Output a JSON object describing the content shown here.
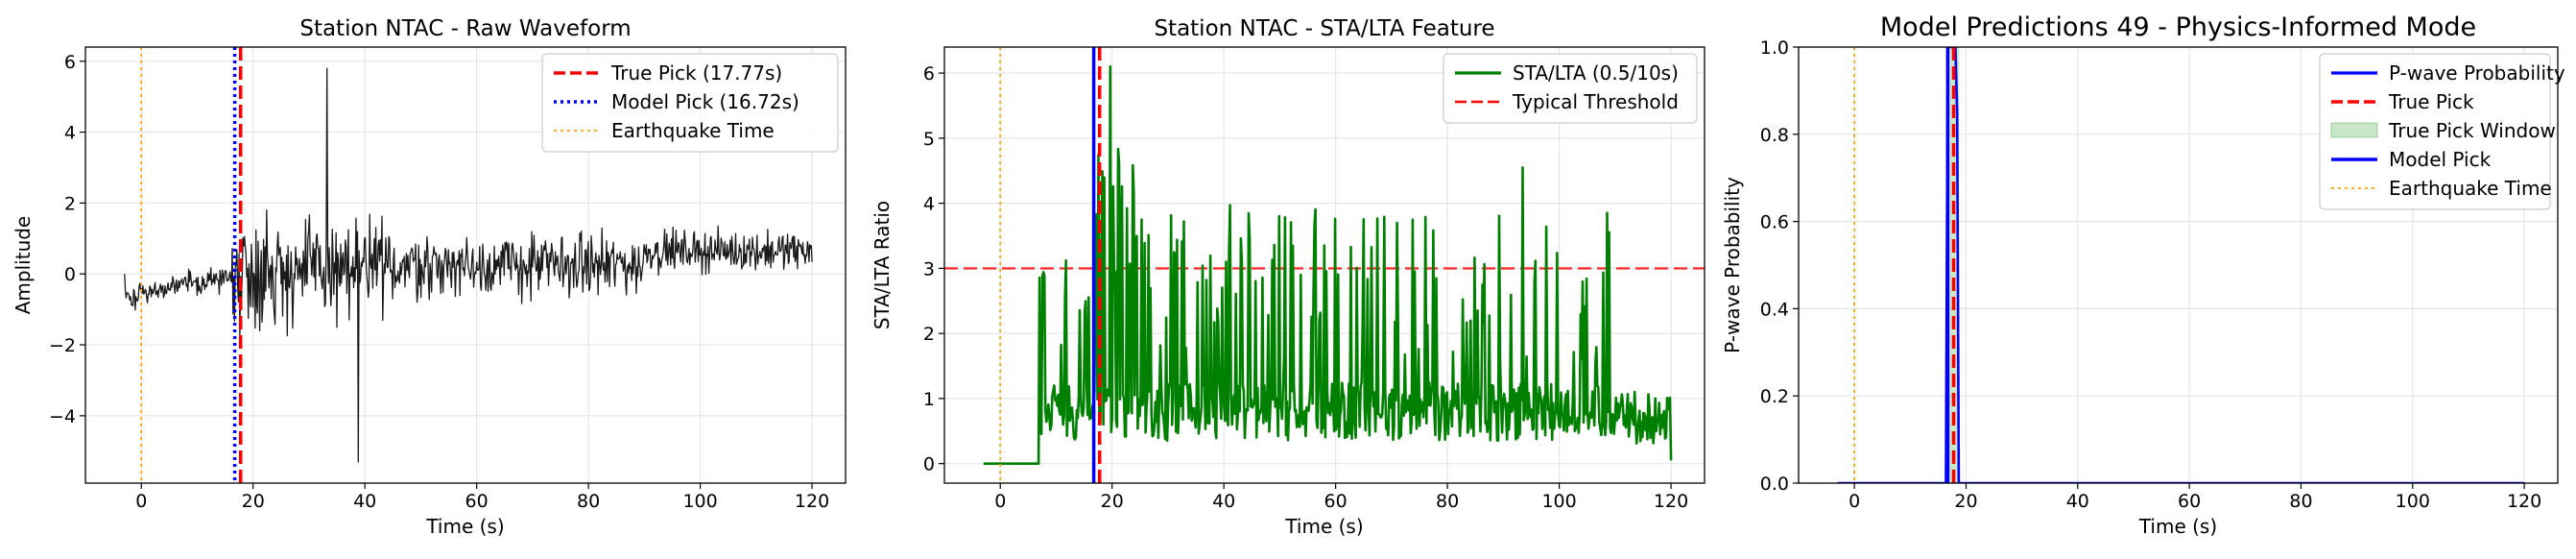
{
  "chart_data": [
    {
      "type": "line",
      "title": "Station NTAC - Raw Waveform",
      "xlabel": "Time (s)",
      "ylabel": "Amplitude",
      "xlim": [
        -10,
        126
      ],
      "ylim": [
        -5.9,
        6.4
      ],
      "xticks": [
        0,
        20,
        40,
        60,
        80,
        100,
        120
      ],
      "yticks": [
        -4,
        -2,
        0,
        2,
        4,
        6
      ],
      "grid": true,
      "legend_position": "top-right",
      "series": [
        {
          "name": "Waveform",
          "color": "#1a1a1a",
          "x_start": -3,
          "x_end": 120,
          "signal": "waveform"
        }
      ],
      "vlines": [
        {
          "name": "True Pick (17.77s)",
          "x": 17.77,
          "color": "#ff0000",
          "style": "dashed"
        },
        {
          "name": "Model Pick (16.72s)",
          "x": 16.72,
          "color": "#0000ff",
          "style": "dotted"
        },
        {
          "name": "Earthquake Time",
          "x": 0,
          "color": "#ffa500",
          "style": "dotted"
        }
      ],
      "legend": [
        "True Pick (17.77s)",
        "Model Pick (16.72s)",
        "Earthquake Time"
      ]
    },
    {
      "type": "line",
      "title": "Station NTAC - STA/LTA Feature",
      "xlabel": "Time (s)",
      "ylabel": "STA/LTA Ratio",
      "xlim": [
        -10,
        126
      ],
      "ylim": [
        -0.3,
        6.4
      ],
      "xticks": [
        0,
        20,
        40,
        60,
        80,
        100,
        120
      ],
      "yticks": [
        0,
        1,
        2,
        3,
        4,
        5,
        6
      ],
      "grid": true,
      "legend_position": "top-right",
      "series": [
        {
          "name": "STA/LTA (0.5/10s)",
          "color": "#008000",
          "x_start": -3,
          "x_end": 120,
          "signal": "stalta"
        }
      ],
      "hlines": [
        {
          "name": "Typical Threshold",
          "y": 3,
          "color": "#ff0000",
          "style": "dashed"
        }
      ],
      "vlines": [
        {
          "x": 17.77,
          "color": "#ff0000",
          "style": "dashed"
        },
        {
          "x": 16.72,
          "color": "#0000ff",
          "style": "solid"
        },
        {
          "x": 0,
          "color": "#ffa500",
          "style": "dotted"
        }
      ],
      "legend": [
        "STA/LTA (0.5/10s)",
        "Typical Threshold"
      ]
    },
    {
      "type": "line",
      "title": "Model Predictions 49 - Physics-Informed Mode",
      "xlabel": "Time (s)",
      "ylabel": "P-wave Probability",
      "xlim": [
        -10,
        126
      ],
      "ylim": [
        0,
        1
      ],
      "xticks": [
        0,
        20,
        40,
        60,
        80,
        100,
        120
      ],
      "yticks": [
        0,
        0.2,
        0.4,
        0.6,
        0.8,
        1.0
      ],
      "ytick_labels": [
        "0.0",
        "0.2",
        "0.4",
        "0.6",
        "0.8",
        "1.0"
      ],
      "grid": true,
      "legend_position": "top-right",
      "series": [
        {
          "name": "P-wave Probability",
          "color": "#0000ff",
          "x": [
            -3,
            16.4,
            16.72,
            17.0,
            17.4,
            17.77,
            18.1,
            18.4,
            18.7,
            120
          ],
          "y": [
            0,
            0,
            1,
            1,
            1,
            1,
            1,
            0.85,
            0,
            0
          ]
        }
      ],
      "true_pick_window": [
        16.77,
        18.77
      ],
      "vlines": [
        {
          "name": "True Pick",
          "x": 17.77,
          "color": "#ff0000",
          "style": "dashed"
        },
        {
          "name": "Model Pick",
          "x": 16.72,
          "color": "#0000ff",
          "style": "solid"
        },
        {
          "name": "Earthquake Time",
          "x": 0,
          "color": "#ffa500",
          "style": "dotted"
        }
      ],
      "legend": [
        "P-wave Probability",
        "True Pick",
        "True Pick Window",
        "Model Pick",
        "Earthquake Time"
      ]
    }
  ]
}
